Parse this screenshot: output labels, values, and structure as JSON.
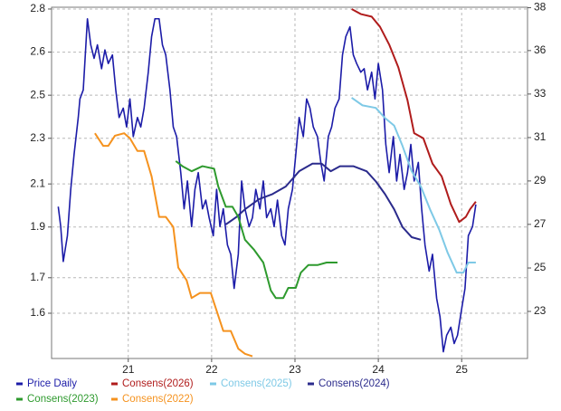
{
  "chart_data": {
    "type": "line",
    "xlim": [
      20.08,
      25.79
    ],
    "xticks": [
      21,
      22,
      23,
      24,
      25
    ],
    "ylim": [
      1.4214,
      2.807
    ],
    "yscale": "linear",
    "yticks": [
      1.6,
      {
        "value": 1.74,
        "label": "1.7"
      },
      {
        "value": 1.94,
        "label": "1.9"
      },
      {
        "value": 2.11,
        "label": "2.1"
      },
      {
        "value": 2.29,
        "label": "2.3"
      },
      {
        "value": 2.46,
        "label": "2.5"
      },
      {
        "value": 2.63,
        "label": "2.6"
      },
      2.8
    ],
    "y2lim": [
      21.26,
      38.23
    ],
    "y2scale": "log",
    "y2ticks": [
      23,
      {
        "value": 24.73,
        "label": "25"
      },
      {
        "value": 26.6,
        "label": "27"
      },
      {
        "value": 28.6,
        "label": "29"
      },
      {
        "value": 30.75,
        "label": "31"
      },
      {
        "value": 33.07,
        "label": "33"
      },
      {
        "value": 35.56,
        "label": "36"
      },
      {
        "value": 38.2,
        "label": "38"
      }
    ],
    "grid": true,
    "legend": "bottom",
    "series": [
      {
        "name": "Price Daily",
        "color": "#1c1ca8",
        "axis": "y2",
        "x": [
          20.16,
          20.19,
          20.22,
          20.27,
          20.31,
          20.35,
          20.4,
          20.42,
          20.46,
          20.51,
          20.55,
          20.59,
          20.63,
          20.68,
          20.72,
          20.76,
          20.81,
          20.85,
          20.89,
          20.94,
          20.98,
          21.02,
          21.06,
          21.11,
          21.15,
          21.19,
          21.24,
          21.28,
          21.32,
          21.37,
          21.41,
          21.45,
          21.5,
          21.54,
          21.58,
          21.63,
          21.67,
          21.71,
          21.76,
          21.8,
          21.84,
          21.89,
          21.93,
          21.97,
          22.02,
          22.06,
          22.1,
          22.14,
          22.19,
          22.23,
          22.27,
          22.32,
          22.36,
          22.4,
          22.45,
          22.49,
          22.53,
          22.58,
          22.62,
          22.66,
          22.71,
          22.75,
          22.79,
          22.84,
          22.88,
          22.92,
          22.97,
          23.01,
          23.05,
          23.1,
          23.14,
          23.18,
          23.22,
          23.27,
          23.31,
          23.35,
          23.4,
          23.44,
          23.48,
          23.53,
          23.57,
          23.61,
          23.66,
          23.7,
          23.74,
          23.79,
          23.83,
          23.87,
          23.92,
          23.96,
          24.0,
          24.05,
          24.09,
          24.13,
          24.18,
          24.22,
          24.26,
          24.31,
          24.35,
          24.39,
          24.43,
          24.48,
          24.52,
          24.56,
          24.61,
          24.65,
          24.7,
          24.74,
          24.78,
          24.82,
          24.87,
          24.91,
          24.95,
          25.0,
          25.04,
          25.08,
          25.13,
          25.17
        ],
        "values": [
          27.4,
          26.5,
          25.0,
          26.1,
          28.2,
          29.9,
          31.8,
          32.8,
          33.3,
          37.5,
          35.9,
          35.1,
          35.9,
          34.5,
          35.6,
          34.8,
          35.3,
          33.3,
          31.8,
          32.3,
          31.3,
          32.8,
          30.8,
          31.8,
          31.3,
          32.3,
          34.3,
          36.4,
          37.5,
          37.5,
          35.9,
          35.3,
          33.3,
          31.3,
          30.8,
          29.0,
          27.3,
          28.6,
          26.5,
          28.2,
          29.0,
          27.3,
          27.7,
          26.9,
          26.1,
          28.2,
          26.5,
          27.3,
          25.7,
          25.3,
          23.9,
          25.3,
          28.6,
          27.3,
          26.5,
          26.9,
          28.2,
          27.3,
          28.6,
          26.9,
          27.3,
          26.5,
          27.7,
          26.1,
          25.7,
          27.3,
          28.2,
          29.9,
          31.8,
          30.8,
          32.8,
          32.3,
          31.3,
          30.8,
          29.5,
          28.6,
          30.8,
          31.3,
          32.3,
          32.8,
          35.3,
          36.4,
          37.0,
          35.3,
          34.8,
          34.3,
          34.5,
          33.3,
          34.3,
          32.8,
          34.8,
          33.3,
          30.4,
          29.0,
          30.8,
          28.6,
          29.9,
          28.2,
          29.0,
          30.4,
          28.6,
          29.5,
          27.3,
          25.7,
          24.6,
          25.3,
          23.5,
          22.8,
          21.5,
          22.1,
          22.4,
          21.8,
          22.1,
          23.1,
          23.9,
          26.1,
          26.5,
          27.5
        ]
      },
      {
        "name": "Consens(2026)",
        "color": "#b01c1c",
        "x": [
          23.68,
          23.79,
          23.92,
          24.02,
          24.13,
          24.24,
          24.35,
          24.43,
          24.54,
          24.65,
          24.76,
          24.87,
          24.97,
          25.05,
          25.1,
          25.17
        ],
        "values": [
          2.8,
          2.78,
          2.77,
          2.73,
          2.66,
          2.57,
          2.44,
          2.31,
          2.29,
          2.19,
          2.14,
          2.03,
          1.96,
          1.98,
          2.01,
          2.04
        ]
      },
      {
        "name": "Consens(2025)",
        "color": "#7ec9e6",
        "x": [
          23.68,
          23.81,
          23.97,
          24.08,
          24.19,
          24.29,
          24.4,
          24.51,
          24.62,
          24.73,
          24.83,
          24.94,
          25.02,
          25.08,
          25.17
        ],
        "values": [
          2.45,
          2.42,
          2.41,
          2.37,
          2.34,
          2.26,
          2.16,
          2.1,
          2.01,
          1.93,
          1.84,
          1.76,
          1.76,
          1.8,
          1.8
        ]
      },
      {
        "name": "Consens(2024)",
        "color": "#2b2b8c",
        "x": [
          22.17,
          22.3,
          22.4,
          22.57,
          22.73,
          22.89,
          23.05,
          23.21,
          23.32,
          23.43,
          23.54,
          23.7,
          23.86,
          23.97,
          24.08,
          24.19,
          24.29,
          24.4,
          24.51
        ],
        "values": [
          1.95,
          1.98,
          2.01,
          2.05,
          2.07,
          2.1,
          2.16,
          2.19,
          2.19,
          2.16,
          2.18,
          2.18,
          2.16,
          2.12,
          2.07,
          2.01,
          1.94,
          1.9,
          1.89
        ]
      },
      {
        "name": "Consens(2023)",
        "color": "#2e9a2e",
        "x": [
          21.57,
          21.65,
          21.76,
          21.89,
          22.03,
          22.08,
          22.17,
          22.25,
          22.32,
          22.4,
          22.51,
          22.62,
          22.71,
          22.77,
          22.86,
          22.92,
          23.01,
          23.07,
          23.16,
          23.27,
          23.38,
          23.51
        ],
        "values": [
          2.2,
          2.18,
          2.16,
          2.18,
          2.17,
          2.1,
          2.02,
          2.02,
          1.98,
          1.89,
          1.85,
          1.8,
          1.69,
          1.66,
          1.66,
          1.7,
          1.7,
          1.76,
          1.79,
          1.79,
          1.8,
          1.8
        ]
      },
      {
        "name": "Consens(2022)",
        "color": "#f5921e",
        "x": [
          20.6,
          20.7,
          20.76,
          20.84,
          20.95,
          21.02,
          21.11,
          21.19,
          21.28,
          21.37,
          21.45,
          21.54,
          21.6,
          21.7,
          21.76,
          21.86,
          21.99,
          22.08,
          22.14,
          22.23,
          22.32,
          22.4,
          22.49
        ],
        "values": [
          2.31,
          2.26,
          2.26,
          2.3,
          2.31,
          2.29,
          2.24,
          2.24,
          2.14,
          1.98,
          1.98,
          1.94,
          1.78,
          1.73,
          1.66,
          1.68,
          1.68,
          1.59,
          1.53,
          1.53,
          1.46,
          1.44,
          1.43
        ]
      }
    ]
  }
}
